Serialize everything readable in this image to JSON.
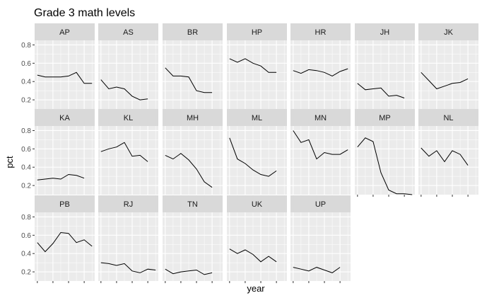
{
  "chart_data": {
    "type": "line",
    "title": "Grade 3 math levels",
    "xlabel": "year",
    "ylabel": "pct",
    "ylim": [
      0.1,
      0.85
    ],
    "yticks": [
      0.2,
      0.4,
      0.6,
      0.8
    ],
    "ytick_labels": [
      "0.2",
      "0.4",
      "0.6",
      "0.8"
    ],
    "x_points": 8,
    "xticks": [
      1,
      3,
      5,
      7
    ],
    "grid": true,
    "line_color": "#000000",
    "panel_bg": "#ebebeb",
    "strip_bg": "#d9d9d9",
    "facets": [
      {
        "name": "AP",
        "values": [
          0.47,
          0.45,
          0.45,
          0.45,
          0.46,
          0.5,
          0.38,
          0.38
        ]
      },
      {
        "name": "AS",
        "values": [
          0.42,
          0.32,
          0.34,
          0.32,
          0.24,
          0.2,
          0.21,
          null
        ]
      },
      {
        "name": "BR",
        "values": [
          0.55,
          0.46,
          0.46,
          0.45,
          0.3,
          0.28,
          0.28,
          null
        ]
      },
      {
        "name": "HP",
        "values": [
          0.65,
          0.61,
          0.65,
          0.6,
          0.57,
          0.5,
          0.5,
          null
        ]
      },
      {
        "name": "HR",
        "values": [
          0.52,
          0.49,
          0.53,
          0.52,
          0.5,
          0.46,
          0.51,
          0.54
        ]
      },
      {
        "name": "JH",
        "values": [
          0.38,
          0.31,
          0.32,
          0.33,
          0.24,
          0.25,
          0.22,
          null
        ]
      },
      {
        "name": "JK",
        "values": [
          0.5,
          0.41,
          0.32,
          0.35,
          0.38,
          0.39,
          0.43,
          null
        ]
      },
      {
        "name": "KA",
        "values": [
          0.26,
          0.27,
          0.28,
          0.27,
          0.32,
          0.31,
          0.28,
          null
        ]
      },
      {
        "name": "KL",
        "values": [
          0.57,
          0.6,
          0.62,
          0.67,
          0.52,
          0.53,
          0.46,
          null
        ]
      },
      {
        "name": "MH",
        "values": [
          0.53,
          0.49,
          0.55,
          0.48,
          0.38,
          0.24,
          0.18,
          null
        ]
      },
      {
        "name": "ML",
        "values": [
          0.72,
          0.49,
          0.44,
          0.37,
          0.32,
          0.3,
          0.36,
          null
        ]
      },
      {
        "name": "MN",
        "values": [
          0.8,
          0.67,
          0.7,
          0.49,
          0.56,
          0.54,
          0.54,
          0.59
        ]
      },
      {
        "name": "MP",
        "values": [
          0.62,
          0.72,
          0.68,
          0.34,
          0.15,
          0.11,
          0.11,
          0.1
        ]
      },
      {
        "name": "NL",
        "values": [
          0.61,
          0.52,
          0.58,
          0.46,
          0.58,
          0.54,
          0.42,
          null
        ]
      },
      {
        "name": "PB",
        "values": [
          0.52,
          0.42,
          0.51,
          0.63,
          0.62,
          0.52,
          0.55,
          0.48
        ]
      },
      {
        "name": "RJ",
        "values": [
          0.3,
          0.29,
          0.27,
          0.29,
          0.21,
          0.19,
          0.23,
          0.22
        ]
      },
      {
        "name": "TN",
        "values": [
          0.23,
          0.18,
          0.2,
          0.21,
          0.22,
          0.17,
          0.19,
          null
        ]
      },
      {
        "name": "UK",
        "values": [
          0.45,
          0.4,
          0.44,
          0.39,
          0.31,
          0.37,
          0.31,
          null
        ]
      },
      {
        "name": "UP",
        "values": [
          0.25,
          0.23,
          0.21,
          0.25,
          0.22,
          0.19,
          0.25,
          null
        ]
      }
    ]
  }
}
